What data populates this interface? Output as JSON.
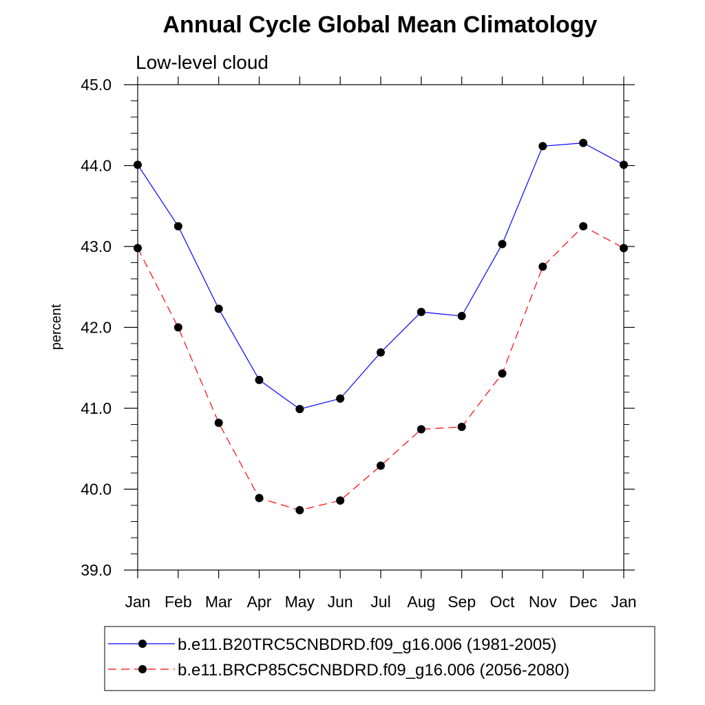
{
  "chart_data": {
    "type": "line",
    "title": "Annual Cycle Global Mean Climatology",
    "subtitle": "Low-level cloud",
    "xlabel": "",
    "ylabel": "percent",
    "ylim": [
      39.0,
      45.0
    ],
    "yticks": [
      "39.0",
      "40.0",
      "41.0",
      "42.0",
      "43.0",
      "44.0",
      "45.0"
    ],
    "categories": [
      "Jan",
      "Feb",
      "Mar",
      "Apr",
      "May",
      "Jun",
      "Jul",
      "Aug",
      "Sep",
      "Oct",
      "Nov",
      "Dec",
      "Jan"
    ],
    "grid": false,
    "legend_position": "bottom",
    "series": [
      {
        "name": "b.e11.B20TRC5CNBDRD.f09_g16.006 (1981-2005)",
        "color": "#0000ff",
        "dash": "solid",
        "marker": "filled-circle",
        "values": [
          44.01,
          43.25,
          42.23,
          41.35,
          40.99,
          41.12,
          41.69,
          42.19,
          42.14,
          43.03,
          44.24,
          44.28,
          44.01
        ]
      },
      {
        "name": "b.e11.BRCP85C5CNBDRD.f09_g16.006 (2056-2080)",
        "color": "#ff0000",
        "dash": "dashed",
        "marker": "filled-circle",
        "values": [
          42.98,
          42.0,
          40.82,
          39.89,
          39.74,
          39.86,
          40.29,
          40.74,
          40.77,
          41.43,
          42.75,
          43.25,
          42.98
        ]
      }
    ]
  }
}
